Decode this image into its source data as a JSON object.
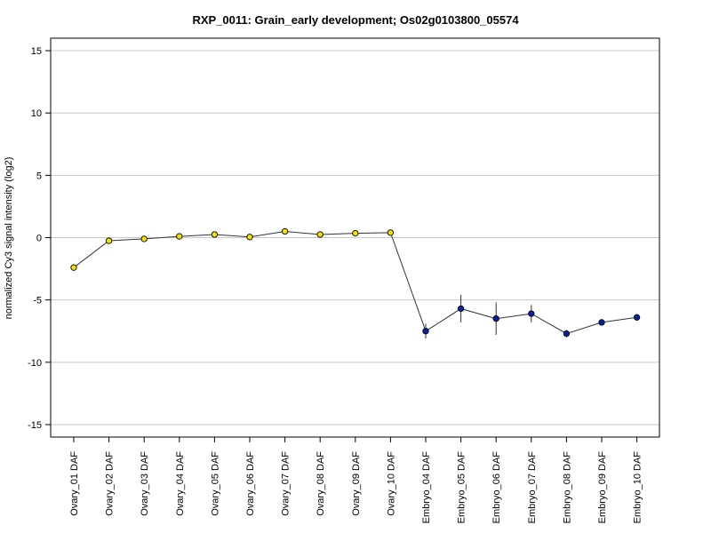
{
  "chart_data": {
    "type": "line",
    "title": "RXP_0011: Grain_early development; Os02g0103800_05574",
    "xlabel": "",
    "ylabel": "normalized Cy3 signal intensity (log2)",
    "ylim": [
      -16,
      16
    ],
    "yticks": [
      15,
      10,
      5,
      0,
      -5,
      -10,
      -15
    ],
    "grid": true,
    "categories": [
      "Ovary_01 DAF",
      "Ovary_02 DAF",
      "Ovary_03 DAF",
      "Ovary_04 DAF",
      "Ovary_05 DAF",
      "Ovary_06 DAF",
      "Ovary_07 DAF",
      "Ovary_08 DAF",
      "Ovary_09 DAF",
      "Ovary_10 DAF",
      "Embryo_04 DAF",
      "Embryo_05 DAF",
      "Embryo_06 DAF",
      "Embryo_07 DAF",
      "Embryo_08 DAF",
      "Embryo_09 DAF",
      "Embryo_10 DAF"
    ],
    "values": [
      -2.4,
      -0.25,
      -0.1,
      0.1,
      0.25,
      0.05,
      0.5,
      0.25,
      0.35,
      0.4,
      -7.5,
      -5.7,
      -6.5,
      -6.1,
      -7.7,
      -6.8,
      -6.4
    ],
    "errors": [
      0.05,
      0.1,
      0.05,
      0.25,
      0.1,
      0.05,
      0.1,
      0.1,
      0.1,
      0.05,
      0.6,
      1.1,
      1.3,
      0.7,
      0.3,
      0.1,
      0.1
    ],
    "point_colors": [
      "#f2e400",
      "#f2e400",
      "#f2e400",
      "#f2e400",
      "#f2e400",
      "#f2e400",
      "#f2e400",
      "#f2e400",
      "#f2e400",
      "#f2e400",
      "#0a1fa8",
      "#0a1fa8",
      "#0a1fa8",
      "#0a1fa8",
      "#0a1fa8",
      "#0a1fa8",
      "#0a1fa8"
    ],
    "line_color": "#333333",
    "grid_color": "#c8c8c8"
  }
}
